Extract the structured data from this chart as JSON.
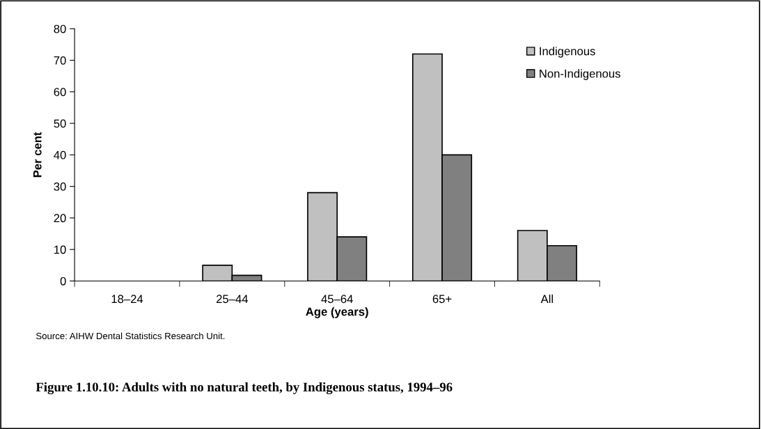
{
  "chart_data": {
    "type": "bar",
    "title": "Figure 1.10.10: Adults with no natural teeth, by Indigenous status, 1994–96",
    "xlabel": "Age (years)",
    "ylabel": "Per cent",
    "categories": [
      "18–24",
      "25–44",
      "45–64",
      "65+",
      "All"
    ],
    "series": [
      {
        "name": "Indigenous",
        "color": "#c0c0c0",
        "values": [
          null,
          5,
          28,
          72,
          16
        ]
      },
      {
        "name": "Non-Indigenous",
        "color": "#808080",
        "values": [
          null,
          1.8,
          14,
          40,
          11.2
        ]
      }
    ],
    "ylim": [
      0,
      80
    ],
    "yticks": [
      0,
      10,
      20,
      30,
      40,
      50,
      60,
      70,
      80
    ],
    "grid": false,
    "legend": "top right",
    "marker": "square",
    "annotations": [
      "Source: AIHW Dental Statistics Research Unit."
    ]
  }
}
